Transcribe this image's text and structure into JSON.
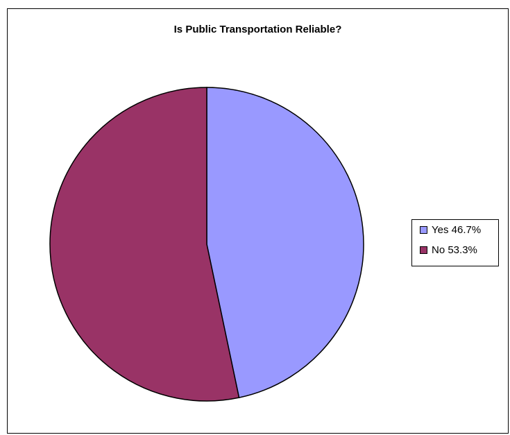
{
  "chart_data": {
    "type": "pie",
    "title": "Is Public Transportation Reliable?",
    "slices": [
      {
        "label": "Yes 46.7%",
        "value": 46.7,
        "color": "#9999ff"
      },
      {
        "label": "No 53.3%",
        "value": 53.3,
        "color": "#993366"
      }
    ],
    "legend_position": "right",
    "start_angle_deg": 0,
    "direction": "clockwise"
  }
}
